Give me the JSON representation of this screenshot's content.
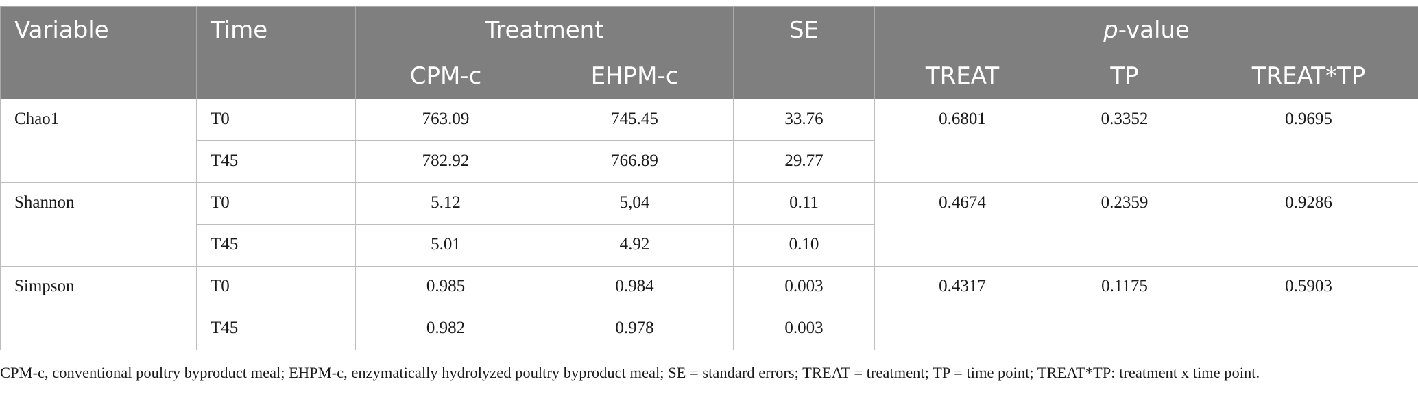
{
  "header": {
    "variable": "Variable",
    "time": "Time",
    "treatment": "Treatment",
    "cpm": "CPM-c",
    "ehpm": "EHPM-c",
    "se": "SE",
    "pvalue_p": "p",
    "pvalue_rest": "-value",
    "treat": "TREAT",
    "tp": "TP",
    "treat_tp": "TREAT*TP"
  },
  "rows": [
    {
      "variable": "Chao1",
      "times": [
        {
          "time": "T0",
          "cpm": "763.09",
          "ehpm": "745.45",
          "se": "33.76"
        },
        {
          "time": "T45",
          "cpm": "782.92",
          "ehpm": "766.89",
          "se": "29.77"
        }
      ],
      "treat": "0.6801",
      "tp": "0.3352",
      "treat_tp": "0.9695"
    },
    {
      "variable": "Shannon",
      "times": [
        {
          "time": "T0",
          "cpm": "5.12",
          "ehpm": "5,04",
          "se": "0.11"
        },
        {
          "time": "T45",
          "cpm": "5.01",
          "ehpm": "4.92",
          "se": "0.10"
        }
      ],
      "treat": "0.4674",
      "tp": "0.2359",
      "treat_tp": "0.9286"
    },
    {
      "variable": "Simpson",
      "times": [
        {
          "time": "T0",
          "cpm": "0.985",
          "ehpm": "0.984",
          "se": "0.003"
        },
        {
          "time": "T45",
          "cpm": "0.982",
          "ehpm": "0.978",
          "se": "0.003"
        }
      ],
      "treat": "0.4317",
      "tp": "0.1175",
      "treat_tp": "0.5903"
    }
  ],
  "footnote": "CPM-c, conventional poultry byproduct meal; EHPM-c, enzymatically hydrolyzed poultry byproduct meal; SE = standard errors; TREAT = treatment; TP = time point; TREAT*TP: treatment x time point."
}
